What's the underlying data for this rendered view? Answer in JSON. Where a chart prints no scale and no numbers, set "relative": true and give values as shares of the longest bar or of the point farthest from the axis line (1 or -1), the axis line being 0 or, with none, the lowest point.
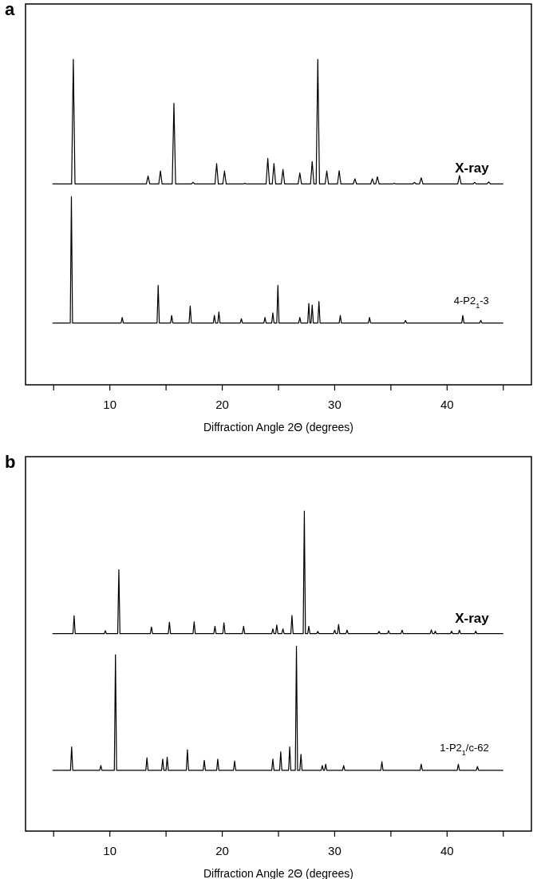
{
  "chart_data": [
    {
      "type": "line",
      "title": "a",
      "xlabel": "Diffraction Angle 2Θ (degrees)",
      "relative": true,
      "xlim": [
        2.5,
        47.5
      ],
      "xticks": [
        {
          "value": 5,
          "label": null
        },
        10,
        {
          "value": 15,
          "label": null
        },
        20,
        {
          "value": 25,
          "label": null
        },
        30,
        {
          "value": 35,
          "label": null
        },
        40,
        {
          "value": 45,
          "label": null
        }
      ],
      "series": [
        {
          "name": "X-ray",
          "color": "#000000",
          "x": [
            4.9,
            6.6,
            6.75,
            6.9,
            13.25,
            13.4,
            13.55,
            14.35,
            14.5,
            14.65,
            15.55,
            15.7,
            15.85,
            17.25,
            17.4,
            17.55,
            19.35,
            19.5,
            19.65,
            20.05,
            20.2,
            20.35,
            21.85,
            22.0,
            22.15,
            23.9,
            24.05,
            24.2,
            24.45,
            24.6,
            24.75,
            25.25,
            25.4,
            25.55,
            26.75,
            26.9,
            27.05,
            27.85,
            28.0,
            28.15,
            28.35,
            28.5,
            28.65,
            29.15,
            29.3,
            29.45,
            30.25,
            30.4,
            30.55,
            31.65,
            31.8,
            31.95,
            33.2,
            33.35,
            33.5,
            33.65,
            33.8,
            33.95,
            35.15,
            35.3,
            35.45,
            36.95,
            37.1,
            37.25,
            37.55,
            37.7,
            37.85,
            40.95,
            41.1,
            41.25,
            42.3,
            42.45,
            42.6,
            43.55,
            43.7,
            43.85,
            45
          ],
          "values": [
            0.617,
            0.617,
            1.0,
            0.617,
            0.617,
            0.642,
            0.617,
            0.617,
            0.657,
            0.617,
            0.617,
            0.865,
            0.617,
            0.617,
            0.622,
            0.617,
            0.617,
            0.68,
            0.617,
            0.617,
            0.657,
            0.617,
            0.617,
            0.619,
            0.617,
            0.617,
            0.696,
            0.617,
            0.617,
            0.68,
            0.617,
            0.617,
            0.662,
            0.617,
            0.617,
            0.651,
            0.617,
            0.617,
            0.686,
            0.617,
            0.617,
            1.0,
            0.617,
            0.617,
            0.657,
            0.617,
            0.617,
            0.658,
            0.617,
            0.617,
            0.633,
            0.617,
            0.617,
            0.633,
            0.617,
            0.617,
            0.639,
            0.617,
            0.617,
            0.619,
            0.617,
            0.617,
            0.622,
            0.617,
            0.617,
            0.636,
            0.617,
            0.617,
            0.643,
            0.617,
            0.617,
            0.622,
            0.617,
            0.617,
            0.623,
            0.617,
            0.617
          ]
        },
        {
          "name": "4-P2$_{1}$-3",
          "color": "#000000",
          "x": [
            4.9,
            6.48,
            6.58,
            6.68,
            11.0,
            11.1,
            11.2,
            14.2,
            14.3,
            14.4,
            15.4,
            15.5,
            15.6,
            17.05,
            17.15,
            17.25,
            19.2,
            19.3,
            19.4,
            19.6,
            19.7,
            19.8,
            21.6,
            21.7,
            21.8,
            23.7,
            23.8,
            23.9,
            24.4,
            24.5,
            24.6,
            24.85,
            24.95,
            25.05,
            26.8,
            26.9,
            27.0,
            27.6,
            27.7,
            27.8,
            27.9,
            28.0,
            28.1,
            28.5,
            28.6,
            28.7,
            30.4,
            30.5,
            30.6,
            33.0,
            33.1,
            33.2,
            36.2,
            36.3,
            36.4,
            41.3,
            41.4,
            41.5,
            42.9,
            43.0,
            43.1,
            45
          ],
          "values": [
            0.19,
            0.19,
            0.578,
            0.19,
            0.19,
            0.207,
            0.19,
            0.19,
            0.306,
            0.19,
            0.19,
            0.213,
            0.19,
            0.19,
            0.242,
            0.19,
            0.19,
            0.213,
            0.19,
            0.19,
            0.224,
            0.19,
            0.19,
            0.203,
            0.19,
            0.19,
            0.207,
            0.19,
            0.19,
            0.221,
            0.19,
            0.19,
            0.306,
            0.19,
            0.19,
            0.207,
            0.19,
            0.19,
            0.25,
            0.19,
            0.19,
            0.245,
            0.19,
            0.19,
            0.256,
            0.19,
            0.19,
            0.213,
            0.19,
            0.19,
            0.207,
            0.19,
            0.19,
            0.198,
            0.19,
            0.19,
            0.213,
            0.19,
            0.19,
            0.198,
            0.19,
            0.19
          ]
        }
      ]
    },
    {
      "type": "line",
      "title": "b",
      "xlabel": "Diffraction Angle 2Θ (degrees)",
      "relative": true,
      "xlim": [
        2.5,
        47.5
      ],
      "xticks": [
        {
          "value": 5,
          "label": null
        },
        10,
        {
          "value": 15,
          "label": null
        },
        20,
        {
          "value": 25,
          "label": null
        },
        30,
        {
          "value": 35,
          "label": null
        },
        40,
        {
          "value": 45,
          "label": null
        }
      ],
      "series": [
        {
          "name": "X-ray",
          "color": "#000000",
          "x": [
            4.9,
            6.72,
            6.82,
            6.92,
            9.5,
            9.6,
            9.7,
            10.7,
            10.8,
            10.9,
            13.6,
            13.7,
            13.8,
            15.2,
            15.3,
            15.4,
            17.4,
            17.5,
            17.6,
            19.25,
            19.35,
            19.45,
            20.05,
            20.15,
            20.25,
            21.8,
            21.9,
            22.0,
            24.4,
            24.5,
            24.6,
            24.75,
            24.85,
            24.95,
            25.3,
            25.4,
            25.5,
            26.1,
            26.2,
            26.3,
            27.2,
            27.3,
            27.4,
            27.6,
            27.7,
            27.8,
            28.4,
            28.5,
            28.6,
            29.9,
            30.0,
            30.1,
            30.25,
            30.35,
            30.45,
            31.0,
            31.1,
            31.2,
            33.85,
            33.95,
            34.05,
            34.7,
            34.8,
            34.9,
            35.9,
            36.0,
            36.1,
            38.5,
            38.6,
            38.7,
            38.85,
            38.95,
            39.05,
            40.3,
            40.4,
            40.5,
            41.0,
            41.1,
            41.2,
            42.45,
            42.55,
            42.65,
            45
          ],
          "values": [
            0.617,
            0.617,
            0.673,
            0.617,
            0.617,
            0.626,
            0.617,
            0.617,
            0.817,
            0.617,
            0.617,
            0.638,
            0.617,
            0.617,
            0.653,
            0.617,
            0.617,
            0.654,
            0.617,
            0.617,
            0.64,
            0.617,
            0.617,
            0.651,
            0.617,
            0.617,
            0.64,
            0.617,
            0.617,
            0.632,
            0.617,
            0.617,
            0.644,
            0.617,
            0.617,
            0.632,
            0.617,
            0.617,
            0.674,
            0.617,
            0.617,
            1.0,
            0.617,
            0.617,
            0.64,
            0.617,
            0.617,
            0.624,
            0.617,
            0.617,
            0.628,
            0.617,
            0.617,
            0.646,
            0.617,
            0.617,
            0.628,
            0.617,
            0.617,
            0.624,
            0.617,
            0.617,
            0.626,
            0.617,
            0.617,
            0.628,
            0.617,
            0.617,
            0.629,
            0.617,
            0.617,
            0.625,
            0.617,
            0.617,
            0.625,
            0.617,
            0.617,
            0.628,
            0.617,
            0.617,
            0.625,
            0.617,
            0.617
          ]
        },
        {
          "name": "1-P2$_{1}$/c-62",
          "color": "#000000",
          "x": [
            4.9,
            6.5,
            6.6,
            6.7,
            9.1,
            9.2,
            9.3,
            10.4,
            10.5,
            10.6,
            13.2,
            13.3,
            13.4,
            14.6,
            14.7,
            14.8,
            15.0,
            15.1,
            15.2,
            16.8,
            16.9,
            17.0,
            18.3,
            18.4,
            18.5,
            19.5,
            19.6,
            19.7,
            21.0,
            21.1,
            21.2,
            24.4,
            24.5,
            24.6,
            25.1,
            25.2,
            25.3,
            25.9,
            26.0,
            26.1,
            26.5,
            26.6,
            26.7,
            26.9,
            27.0,
            27.1,
            28.8,
            28.9,
            29.0,
            29.1,
            29.2,
            29.3,
            30.7,
            30.8,
            30.9,
            34.1,
            34.2,
            34.3,
            37.6,
            37.7,
            37.8,
            40.9,
            41.0,
            41.1,
            42.6,
            42.7,
            42.8,
            45
          ],
          "values": [
            0.19,
            0.19,
            0.263,
            0.19,
            0.19,
            0.205,
            0.19,
            0.19,
            0.551,
            0.19,
            0.19,
            0.229,
            0.19,
            0.19,
            0.225,
            0.19,
            0.19,
            0.231,
            0.19,
            0.19,
            0.254,
            0.19,
            0.19,
            0.221,
            0.19,
            0.19,
            0.225,
            0.19,
            0.19,
            0.219,
            0.19,
            0.19,
            0.225,
            0.19,
            0.19,
            0.248,
            0.19,
            0.19,
            0.263,
            0.19,
            0.19,
            0.578,
            0.19,
            0.19,
            0.24,
            0.19,
            0.19,
            0.205,
            0.19,
            0.19,
            0.209,
            0.19,
            0.19,
            0.205,
            0.19,
            0.19,
            0.217,
            0.19,
            0.19,
            0.209,
            0.19,
            0.19,
            0.209,
            0.19,
            0.19,
            0.202,
            0.19,
            0.19
          ]
        }
      ]
    }
  ]
}
